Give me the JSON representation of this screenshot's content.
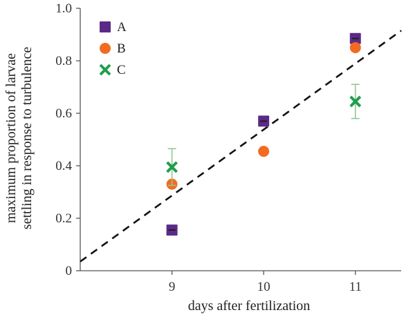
{
  "chart_data": {
    "type": "scatter",
    "title": "",
    "xlabel": "days after fertilization",
    "ylabel": [
      "maximum proportion of larvae",
      "settling in response to turbulence"
    ],
    "xlim": [
      8,
      11.5
    ],
    "ylim": [
      0,
      1.0
    ],
    "x_ticks": [
      9,
      10,
      11
    ],
    "x_tick_labels": [
      "9",
      "10",
      "11"
    ],
    "y_ticks": [
      0,
      0.2,
      0.4,
      0.6,
      0.8,
      1.0
    ],
    "y_tick_labels": [
      "0",
      "0.2",
      "0.4",
      "0.6",
      "0.8",
      "1.0"
    ],
    "grid": false,
    "legend_position": "top-left",
    "series": [
      {
        "name": "A",
        "marker": "square",
        "color": "#5b2a86",
        "points": [
          {
            "x": 9,
            "y": 0.155,
            "err": 0.008
          },
          {
            "x": 10,
            "y": 0.57,
            "err": 0.01
          },
          {
            "x": 11,
            "y": 0.885,
            "err": 0.01
          }
        ]
      },
      {
        "name": "B",
        "marker": "circle",
        "color": "#f26b21",
        "points": [
          {
            "x": 9,
            "y": 0.33,
            "err": 0.0
          },
          {
            "x": 10,
            "y": 0.455,
            "err": 0.0
          },
          {
            "x": 11,
            "y": 0.85,
            "err": 0.0
          }
        ]
      },
      {
        "name": "C",
        "marker": "x",
        "color": "#1f9e4e",
        "errcolor": "#8fc890",
        "points": [
          {
            "x": 9,
            "y": 0.395,
            "err": 0.07
          },
          {
            "x": 11,
            "y": 0.645,
            "err": 0.065
          }
        ]
      }
    ],
    "trendline": {
      "style": "dashed",
      "color": "#111111",
      "x": [
        8,
        11.5
      ],
      "y": [
        0.035,
        0.915
      ]
    }
  }
}
